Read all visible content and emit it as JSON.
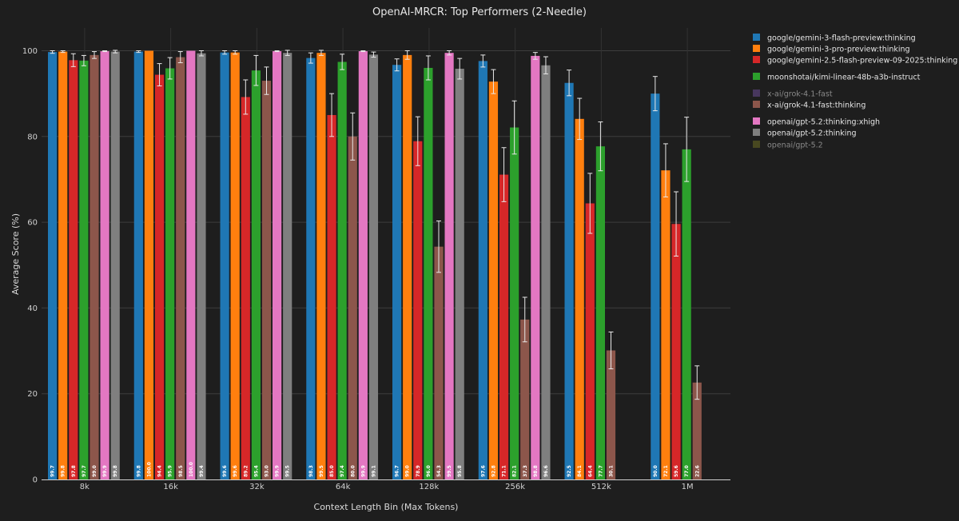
{
  "chart_data": {
    "type": "bar",
    "title": "OpenAI-MRCR: Top Performers (2-Needle)",
    "xlabel": "Context Length Bin (Max Tokens)",
    "ylabel": "Average Score (%)",
    "ylim": [
      0,
      105
    ],
    "yticks": [
      0,
      20,
      40,
      60,
      80,
      100
    ],
    "grid": true,
    "legend_position": "right",
    "categories": [
      "8k",
      "16k",
      "32k",
      "64k",
      "128k",
      "256k",
      "512k",
      "1M"
    ],
    "series": [
      {
        "name": "google/gemini-3-flash-preview:thinking",
        "color": "#1f77b4",
        "visible": true,
        "values": [
          99.7,
          99.8,
          99.6,
          98.3,
          96.7,
          97.6,
          92.5,
          90.0
        ],
        "errors": [
          0.3,
          0.2,
          0.4,
          1.2,
          1.4,
          1.4,
          3.0,
          4.0
        ]
      },
      {
        "name": "google/gemini-3-pro-preview:thinking",
        "color": "#ff7f0e",
        "visible": true,
        "values": [
          99.8,
          100.0,
          99.6,
          99.5,
          99.0,
          92.8,
          84.1,
          72.1
        ],
        "errors": [
          0.2,
          0.0,
          0.4,
          0.6,
          1.0,
          2.8,
          4.8,
          6.2
        ]
      },
      {
        "name": "google/gemini-2.5-flash-preview-09-2025:thinking",
        "color": "#d62728",
        "visible": true,
        "values": [
          97.8,
          94.4,
          89.2,
          85.0,
          78.9,
          71.1,
          64.4,
          59.6
        ],
        "errors": [
          1.5,
          2.6,
          4.0,
          5.0,
          5.7,
          6.3,
          7.0,
          7.5
        ]
      },
      {
        "name": "moonshotai/kimi-linear-48b-a3b-instruct",
        "color": "#2ca02c",
        "visible": true,
        "values": [
          97.7,
          95.9,
          95.4,
          97.4,
          96.0,
          82.1,
          77.7,
          77.0
        ],
        "errors": [
          1.2,
          2.5,
          3.5,
          1.8,
          2.8,
          6.2,
          5.7,
          7.5
        ]
      },
      {
        "name": "x-ai/grok-4.1-fast",
        "color": "#6a4c93",
        "visible": false,
        "values": [
          null,
          null,
          null,
          null,
          null,
          null,
          null,
          null
        ],
        "errors": [
          null,
          null,
          null,
          null,
          null,
          null,
          null,
          null
        ]
      },
      {
        "name": "x-ai/grok-4.1-fast:thinking",
        "color": "#8c564b",
        "visible": true,
        "values": [
          99.0,
          98.5,
          93.0,
          80.0,
          54.3,
          37.3,
          30.1,
          22.6
        ],
        "errors": [
          0.8,
          1.3,
          3.2,
          5.5,
          6.0,
          5.2,
          4.3,
          3.9
        ]
      },
      {
        "name": "openai/gpt-5.2:thinking:xhigh",
        "color": "#e377c2",
        "visible": true,
        "values": [
          99.9,
          100.0,
          99.9,
          99.9,
          99.5,
          98.8,
          null,
          null
        ],
        "errors": [
          0.1,
          0.0,
          0.1,
          0.1,
          0.5,
          0.8,
          null,
          null
        ]
      },
      {
        "name": "openai/gpt-5.2:thinking",
        "color": "#7f7f7f",
        "visible": true,
        "values": [
          99.8,
          99.4,
          99.5,
          99.1,
          95.8,
          96.6,
          null,
          null
        ],
        "errors": [
          0.3,
          0.6,
          0.6,
          0.6,
          2.4,
          2.0,
          null,
          null
        ]
      },
      {
        "name": "openai/gpt-5.2",
        "color": "#6b6b23",
        "visible": false,
        "values": [
          null,
          null,
          null,
          null,
          null,
          null,
          null,
          null
        ],
        "errors": [
          null,
          null,
          null,
          null,
          null,
          null,
          null,
          null
        ]
      }
    ]
  }
}
